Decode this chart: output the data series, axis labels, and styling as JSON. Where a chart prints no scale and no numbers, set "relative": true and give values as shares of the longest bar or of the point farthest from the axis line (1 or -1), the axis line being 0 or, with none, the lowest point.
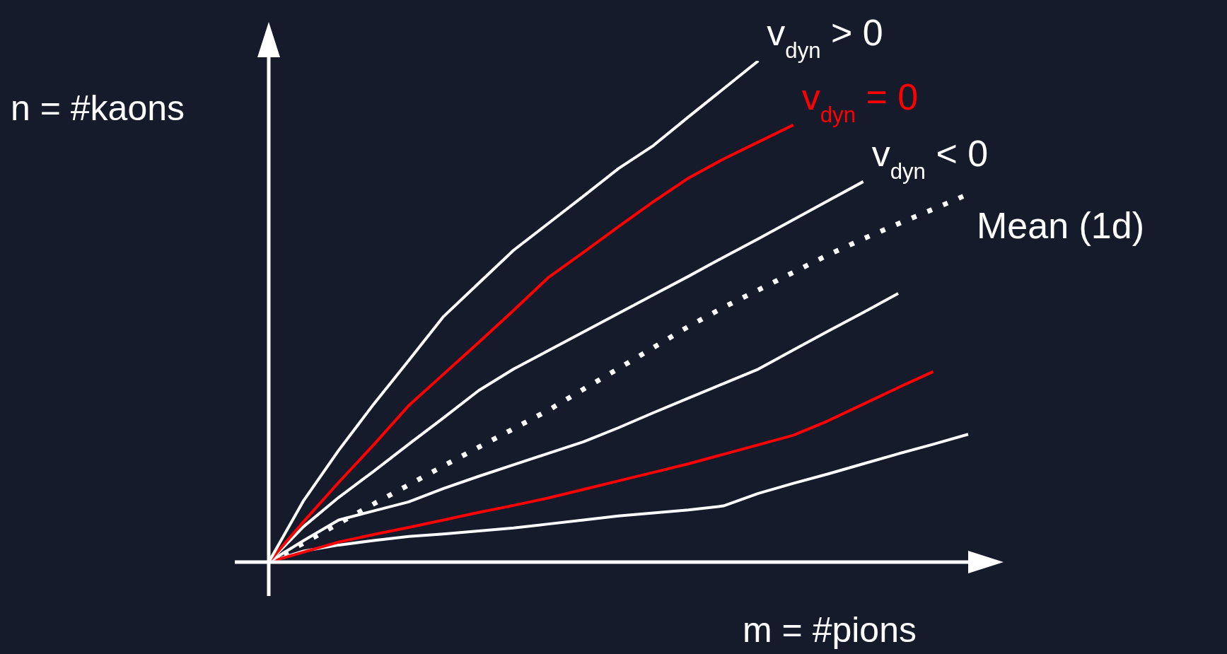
{
  "chart_data": {
    "type": "line",
    "relative": true,
    "xlabel": "m = #pions",
    "ylabel": "n = #kaons",
    "categories": [
      null,
      null,
      null,
      null,
      null,
      null,
      null,
      null,
      null,
      null,
      null,
      null,
      null,
      null,
      null,
      null,
      null,
      null,
      null,
      null,
      null
    ],
    "series": [
      {
        "name": "v$_{dyn}$ > 0",
        "color": "#ffffff",
        "values": [
          0,
          0.123,
          0.223,
          0.315,
          0.402,
          0.49,
          0.556,
          0.622,
          0.676,
          0.73,
          0.785,
          0.831,
          0.888,
          0.944,
          1.0,
          null,
          null,
          null,
          null,
          null,
          null
        ]
      },
      {
        "name": "v$_{dyn}$ = 0",
        "color": "#ff0000",
        "values": [
          0,
          0.081,
          0.159,
          0.234,
          0.312,
          0.375,
          0.438,
          0.502,
          0.568,
          0.618,
          0.669,
          0.719,
          0.766,
          0.804,
          0.838,
          0.872,
          null,
          null,
          null,
          null,
          null
        ]
      },
      {
        "name": "v$_{dyn}$ < 0",
        "color": "#ffffff",
        "values": [
          0,
          0.071,
          0.129,
          0.181,
          0.235,
          0.288,
          0.342,
          0.385,
          0.422,
          0.459,
          0.496,
          0.533,
          0.57,
          0.608,
          0.645,
          0.683,
          0.721,
          0.759,
          null,
          null,
          null
        ]
      },
      {
        "name": "Mean (1d)",
        "color": "#ffffff",
        "line_style": "dotted",
        "values": [
          0,
          0.038,
          0.077,
          0.116,
          0.154,
          0.192,
          0.229,
          0.266,
          0.303,
          0.345,
          0.386,
          0.428,
          0.47,
          0.508,
          0.543,
          0.578,
          0.613,
          0.645,
          0.675,
          0.704,
          0.734
        ]
      },
      {
        "color": "#ffffff",
        "values": [
          0,
          0.043,
          0.084,
          0.102,
          0.12,
          0.147,
          0.171,
          0.194,
          0.217,
          0.24,
          0.268,
          0.298,
          0.327,
          0.356,
          0.385,
          0.423,
          0.461,
          0.498,
          0.536,
          null,
          null
        ]
      },
      {
        "color": "#ff0000",
        "values": [
          0,
          0.02,
          0.04,
          0.055,
          0.069,
          0.084,
          0.099,
          0.113,
          0.128,
          0.145,
          0.162,
          0.179,
          0.196,
          0.215,
          0.234,
          0.253,
          0.282,
          0.315,
          0.348,
          0.38,
          null
        ]
      },
      {
        "color": "#ffffff",
        "values": [
          0,
          0.022,
          0.034,
          0.043,
          0.051,
          0.056,
          0.062,
          0.068,
          0.076,
          0.084,
          0.092,
          0.098,
          0.104,
          0.112,
          0.137,
          0.157,
          0.176,
          0.196,
          0.216,
          0.235,
          0.255
        ]
      }
    ]
  }
}
